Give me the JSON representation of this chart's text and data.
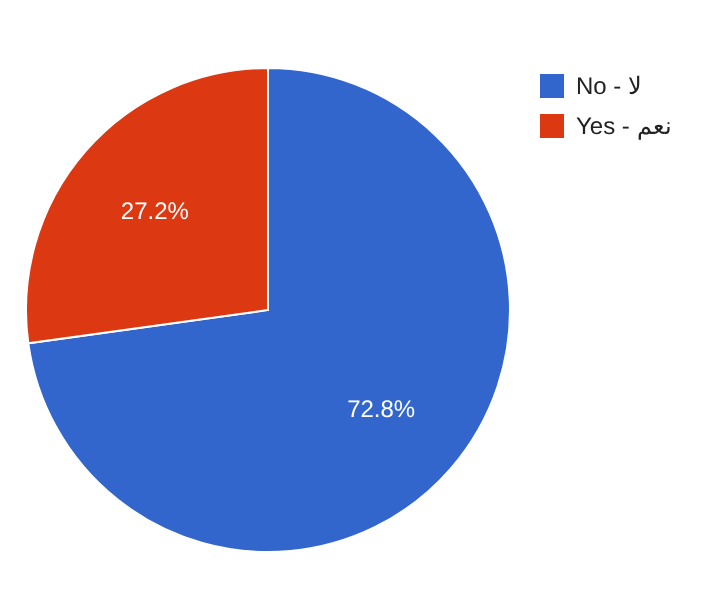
{
  "chart_data": {
    "type": "pie",
    "categories": [
      "No - لا",
      "Yes - نعم"
    ],
    "values": [
      72.8,
      27.2
    ],
    "value_labels": [
      "72.8%",
      "27.2%"
    ],
    "colors": [
      "#3366cc",
      "#dc3912"
    ],
    "legend": "top right"
  }
}
